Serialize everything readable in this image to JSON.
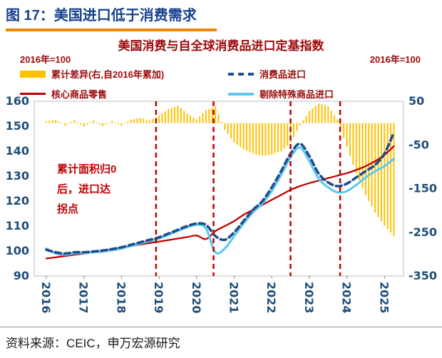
{
  "header": {
    "title": "图 17：美国进口低于消费需求"
  },
  "chart": {
    "title": "美国消费与自全球消费品进口定基指数",
    "left_axis_unit": "2016年=100",
    "right_axis_unit": "2016年=100",
    "annotation": "累计面积归0\n后，进口达\n拐点",
    "legend": [
      {
        "label": "累计差异(右,自2016年累加)",
        "color": "#FFC000"
      },
      {
        "label": "消费品进口",
        "color": "#1F4E8C"
      },
      {
        "label": "核心商品零售",
        "color": "#C00000"
      },
      {
        "label": "剔除特殊商品进口",
        "color": "#5BC8F0"
      }
    ]
  },
  "footer": {
    "source": "资料来源：CEIC，申万宏源研究"
  },
  "theme": {
    "accent_underline": "#F08300",
    "title_color": "#17418E",
    "chart_text_red": "#9C0A0A",
    "axis_label_blue": "#1F4E79"
  },
  "chart_data": {
    "type": "combo",
    "title": "美国消费与自全球消费品进口定基指数",
    "x": [
      2016.0,
      2016.25,
      2016.5,
      2016.75,
      2017.0,
      2017.25,
      2017.5,
      2017.75,
      2018.0,
      2018.25,
      2018.5,
      2018.75,
      2019.0,
      2019.25,
      2019.5,
      2019.75,
      2020.0,
      2020.25,
      2020.5,
      2020.75,
      2021.0,
      2021.25,
      2021.5,
      2021.75,
      2022.0,
      2022.25,
      2022.5,
      2022.75,
      2023.0,
      2023.25,
      2023.5,
      2023.75,
      2024.0,
      2024.25,
      2024.5,
      2024.75,
      2025.0,
      2025.25
    ],
    "series": [
      {
        "name": "累计差异(右,自2016年累加)",
        "type": "bar",
        "axis": "right",
        "color": "#FFC000",
        "values": [
          4,
          8,
          -6,
          7,
          -8,
          6,
          -7,
          5,
          -6,
          8,
          12,
          6,
          18,
          32,
          40,
          22,
          8,
          30,
          38,
          -15,
          -45,
          -60,
          -70,
          -75,
          -72,
          -65,
          -45,
          -5,
          28,
          45,
          38,
          8,
          -55,
          -115,
          -165,
          -205,
          -235,
          -258
        ]
      },
      {
        "name": "消费品进口",
        "type": "line",
        "style": "dashed",
        "axis": "left",
        "color": "#1F4E8C",
        "width": 3.6,
        "values": [
          100.5,
          99.5,
          99.0,
          99.5,
          99.5,
          99.8,
          100.2,
          100.8,
          101.5,
          102.5,
          103.5,
          104.5,
          105.5,
          107.0,
          108.5,
          110.0,
          111.0,
          110.5,
          106.0,
          104.5,
          107.5,
          112.0,
          116.5,
          120.0,
          125.5,
          132.0,
          139.0,
          143.0,
          138.0,
          131.0,
          127.5,
          126.0,
          127.0,
          129.5,
          132.0,
          134.5,
          139.0,
          147.5
        ]
      },
      {
        "name": "核心商品零售",
        "type": "line",
        "style": "solid",
        "axis": "left",
        "color": "#C00000",
        "width": 2.3,
        "values": [
          97.0,
          97.5,
          98.0,
          98.5,
          99.0,
          99.5,
          100.0,
          100.7,
          101.3,
          102.0,
          102.6,
          103.2,
          103.8,
          104.4,
          105.0,
          105.6,
          106.2,
          104.8,
          108.0,
          110.0,
          112.0,
          114.5,
          116.5,
          118.5,
          120.5,
          122.5,
          124.5,
          126.0,
          127.2,
          128.2,
          129.2,
          130.2,
          131.2,
          132.5,
          134.0,
          136.0,
          138.5,
          142.0
        ]
      },
      {
        "name": "剔除特殊商品进口",
        "type": "line",
        "style": "solid",
        "axis": "left",
        "color": "#5BC8F0",
        "width": 3.0,
        "values": [
          101.0,
          99.0,
          98.5,
          99.0,
          99.2,
          99.5,
          99.8,
          100.3,
          101.0,
          102.0,
          103.0,
          104.0,
          105.0,
          106.5,
          108.0,
          109.5,
          110.5,
          109.0,
          99.5,
          101.0,
          106.0,
          111.0,
          115.5,
          119.0,
          124.0,
          130.5,
          137.5,
          141.5,
          136.0,
          129.0,
          125.5,
          123.5,
          124.0,
          126.5,
          129.5,
          132.0,
          134.0,
          137.0
        ]
      }
    ],
    "left_axis": {
      "min": 90,
      "max": 160,
      "ticks": [
        160,
        150,
        140,
        130,
        120,
        110,
        100,
        90
      ]
    },
    "right_axis": {
      "min": -350,
      "max": 50,
      "ticks": [
        50,
        -50,
        -150,
        -250,
        -350
      ]
    },
    "x_ticks": [
      2016,
      2017,
      2018,
      2019,
      2020,
      2021,
      2022,
      2023,
      2024,
      2025
    ],
    "vlines": [
      2018.92,
      2020.45,
      2022.5,
      2023.82
    ],
    "grid": false,
    "legend_position": "top"
  }
}
